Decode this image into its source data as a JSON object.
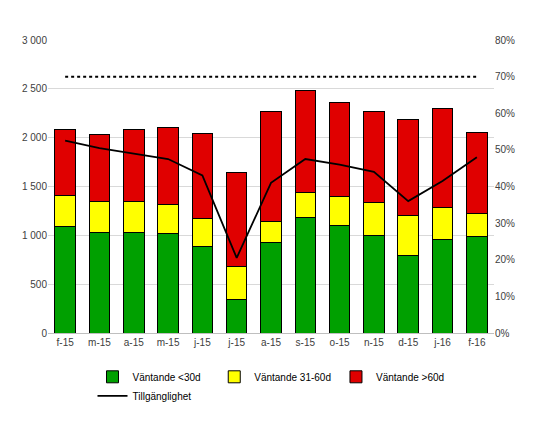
{
  "chart_data": {
    "type": "bar",
    "stacked": true,
    "grid": true,
    "legend": "bottom",
    "categories": [
      "f-15",
      "m-15",
      "a-15",
      "m-15",
      "j-15",
      "j-15",
      "a-15",
      "s-15",
      "o-15",
      "n-15",
      "d-15",
      "j-16",
      "f-16"
    ],
    "ylim": [
      0,
      3000
    ],
    "yticks": [
      0,
      500,
      {
        "value": 1000,
        "label": "1 000"
      },
      {
        "value": 1500,
        "label": "1 500"
      },
      {
        "value": 2000,
        "label": "2 000"
      },
      {
        "value": 2500,
        "label": "2 500"
      },
      {
        "value": 3000,
        "label": "3 000"
      }
    ],
    "y2lim": [
      0,
      80
    ],
    "y2ticks": [
      {
        "value": 0,
        "label": "0%"
      },
      {
        "value": 10,
        "label": "10%"
      },
      {
        "value": 20,
        "label": "20%"
      },
      {
        "value": 30,
        "label": "30%"
      },
      {
        "value": 40,
        "label": "40%"
      },
      {
        "value": 50,
        "label": "50%"
      },
      {
        "value": 60,
        "label": "60%"
      },
      {
        "value": 70,
        "label": "70%"
      },
      {
        "value": 80,
        "label": "80%"
      }
    ],
    "series": [
      {
        "name": "Väntande <30d",
        "type": "bar",
        "color": "#00a000",
        "values": [
          1090,
          1030,
          1030,
          1015,
          885,
          340,
          930,
          1180,
          1100,
          1000,
          790,
          955,
          990
        ]
      },
      {
        "name": "Väntande 31-60d",
        "type": "bar",
        "color": "#ffff00",
        "values": [
          320,
          315,
          320,
          305,
          290,
          340,
          210,
          255,
          300,
          335,
          415,
          325,
          230
        ]
      },
      {
        "name": "Väntande >60d",
        "type": "bar",
        "color": "#e00000",
        "values": [
          670,
          690,
          730,
          785,
          870,
          960,
          1125,
          1045,
          965,
          930,
          985,
          1020,
          835
        ]
      },
      {
        "name": "Tillgänglighet",
        "type": "line",
        "axis": "y2",
        "color": "#000000",
        "line_style": "solid",
        "values": [
          52.5,
          50.5,
          49,
          47.5,
          43,
          20.5,
          41,
          47.5,
          46,
          44,
          36,
          41.5,
          48
        ]
      },
      {
        "type": "line",
        "axis": "y2",
        "color": "#000000",
        "line_style": "dotted",
        "values": [
          70,
          70,
          70,
          70,
          70,
          70,
          70,
          70,
          70,
          70,
          70,
          70,
          70
        ]
      }
    ]
  }
}
